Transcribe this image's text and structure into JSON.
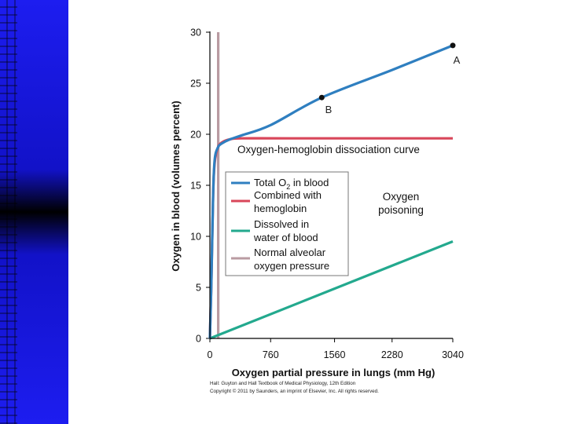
{
  "chart_data": {
    "type": "line",
    "xlabel": "Oxygen partial pressure in lungs (mm Hg)",
    "ylabel": "Oxygen in blood (volumes percent)",
    "xlim": [
      0,
      3040
    ],
    "ylim": [
      0,
      30
    ],
    "xticks": [
      0,
      760,
      1560,
      2280,
      3040
    ],
    "yticks": [
      0,
      5,
      10,
      15,
      20,
      25,
      30
    ],
    "series": [
      {
        "name": "Total O2 in blood",
        "color": "#2f7fc0",
        "points": [
          [
            0,
            0
          ],
          [
            20,
            6
          ],
          [
            40,
            14
          ],
          [
            60,
            17.5
          ],
          [
            100,
            18.7
          ],
          [
            150,
            19.1
          ],
          [
            250,
            19.5
          ],
          [
            400,
            19.9
          ],
          [
            760,
            20.9
          ],
          [
            1400,
            23.6
          ],
          [
            2280,
            26.3
          ],
          [
            3040,
            28.7
          ]
        ]
      },
      {
        "name": "Combined with hemoglobin",
        "color": "#d9465a",
        "points": [
          [
            0,
            0
          ],
          [
            20,
            6
          ],
          [
            40,
            14
          ],
          [
            60,
            17.2
          ],
          [
            100,
            18.7
          ],
          [
            150,
            19.2
          ],
          [
            250,
            19.5
          ],
          [
            400,
            19.6
          ],
          [
            1000,
            19.6
          ],
          [
            3040,
            19.6
          ]
        ]
      },
      {
        "name": "Dissolved in water of blood",
        "color": "#23a98e",
        "points": [
          [
            0,
            0
          ],
          [
            3040,
            9.5
          ]
        ]
      },
      {
        "name": "Normal alveolar oxygen pressure",
        "color": "#b99ba2",
        "points": [
          [
            104,
            0
          ],
          [
            104,
            30
          ]
        ]
      }
    ],
    "annotations": [
      {
        "text": "A",
        "x": 3040,
        "y": 28.7
      },
      {
        "text": "B",
        "x": 1400,
        "y": 23.6
      },
      {
        "text": "Oxygen-hemoglobin dissociation curve"
      },
      {
        "text": "Oxygen poisoning"
      }
    ],
    "legend_items": [
      {
        "lines": [
          "Total O",
          "2",
          " in blood"
        ],
        "color": "#2f7fc0"
      },
      {
        "lines": [
          "Combined with",
          "hemoglobin"
        ],
        "color": "#d9465a"
      },
      {
        "lines": [
          "Dissolved in",
          "water of blood"
        ],
        "color": "#23a98e"
      },
      {
        "lines": [
          "Normal alveolar",
          "oxygen pressure"
        ],
        "color": "#b99ba2"
      }
    ],
    "legend_placement": "middle-left",
    "poisoning_lines": [
      "Oxygen",
      "poisoning"
    ]
  },
  "point_labels": {
    "a": "A",
    "b": "B"
  },
  "curve_label": "Oxygen-hemoglobin dissociation curve",
  "credit_lines": [
    "Hall: Guyton and Hall Textbook of Medical Physiology, 12th Edition",
    "Copyright © 2011 by Saunders, an imprint of Elsevier, Inc. All rights reserved."
  ]
}
